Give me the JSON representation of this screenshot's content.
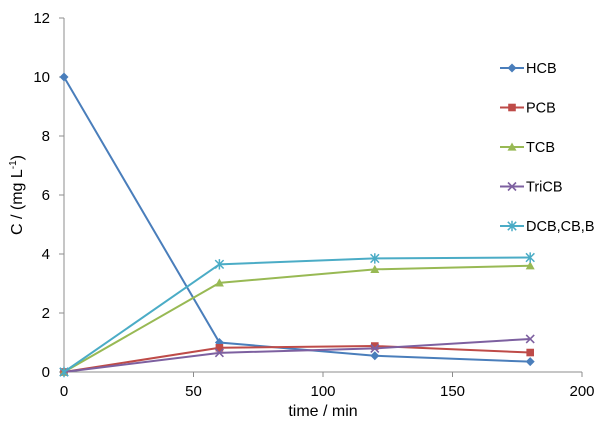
{
  "chart_data": {
    "type": "line",
    "xlabel": "time / min",
    "ylabel": "C / (mg L-1)",
    "ylabel_parts": {
      "pre": "C / (mg L",
      "sup": "-1",
      "post": ")"
    },
    "xlim": [
      0,
      200
    ],
    "ylim": [
      0,
      12
    ],
    "xticks": [
      0,
      50,
      100,
      150,
      200
    ],
    "yticks": [
      0,
      2,
      4,
      6,
      8,
      10,
      12
    ],
    "grid": false,
    "legend": "right",
    "x": [
      0,
      60,
      120,
      180
    ],
    "series": [
      {
        "name": "HCB",
        "values": [
          10,
          1.0,
          0.55,
          0.35
        ],
        "color": "#4a7ebb",
        "marker": "diamond"
      },
      {
        "name": "PCB",
        "values": [
          0,
          0.82,
          0.88,
          0.66
        ],
        "color": "#be4b48",
        "marker": "square"
      },
      {
        "name": "TCB",
        "values": [
          0,
          3.02,
          3.48,
          3.6
        ],
        "color": "#98b954",
        "marker": "triangle"
      },
      {
        "name": "TriCB",
        "values": [
          0,
          0.65,
          0.8,
          1.12
        ],
        "color": "#7d60a0",
        "marker": "x"
      },
      {
        "name": "DCB,CB,B",
        "values": [
          0,
          3.65,
          3.85,
          3.88
        ],
        "color": "#4bacc6",
        "marker": "star"
      }
    ]
  }
}
